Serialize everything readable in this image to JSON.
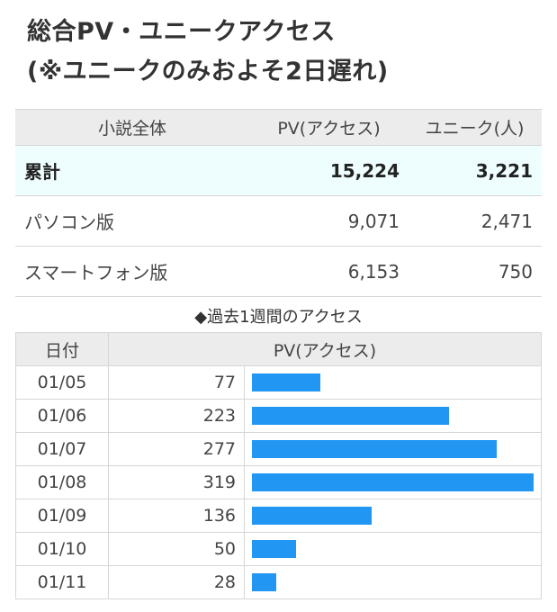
{
  "heading": {
    "line1": "総合PV・ユニークアクセス",
    "line2": "(※ユニークのみおよそ2日遅れ)"
  },
  "summary": {
    "headers": [
      "小説全体",
      "PV(アクセス)",
      "ユニーク(人)"
    ],
    "rows": [
      {
        "label": "累計",
        "pv": "15,224",
        "unique": "3,221"
      },
      {
        "label": "パソコン版",
        "pv": "9,071",
        "unique": "2,471"
      },
      {
        "label": "スマートフォン版",
        "pv": "6,153",
        "unique": "750"
      }
    ]
  },
  "weekly": {
    "title": "◆過去1週間のアクセス",
    "headers": [
      "日付",
      "PV(アクセス)"
    ],
    "bar_color": "#2196f3",
    "max_value": 319,
    "rows": [
      {
        "date": "01/05",
        "pv": "77",
        "value": 77
      },
      {
        "date": "01/06",
        "pv": "223",
        "value": 223
      },
      {
        "date": "01/07",
        "pv": "277",
        "value": 277
      },
      {
        "date": "01/08",
        "pv": "319",
        "value": 319
      },
      {
        "date": "01/09",
        "pv": "136",
        "value": 136
      },
      {
        "date": "01/10",
        "pv": "50",
        "value": 50
      },
      {
        "date": "01/11",
        "pv": "28",
        "value": 28
      }
    ]
  }
}
